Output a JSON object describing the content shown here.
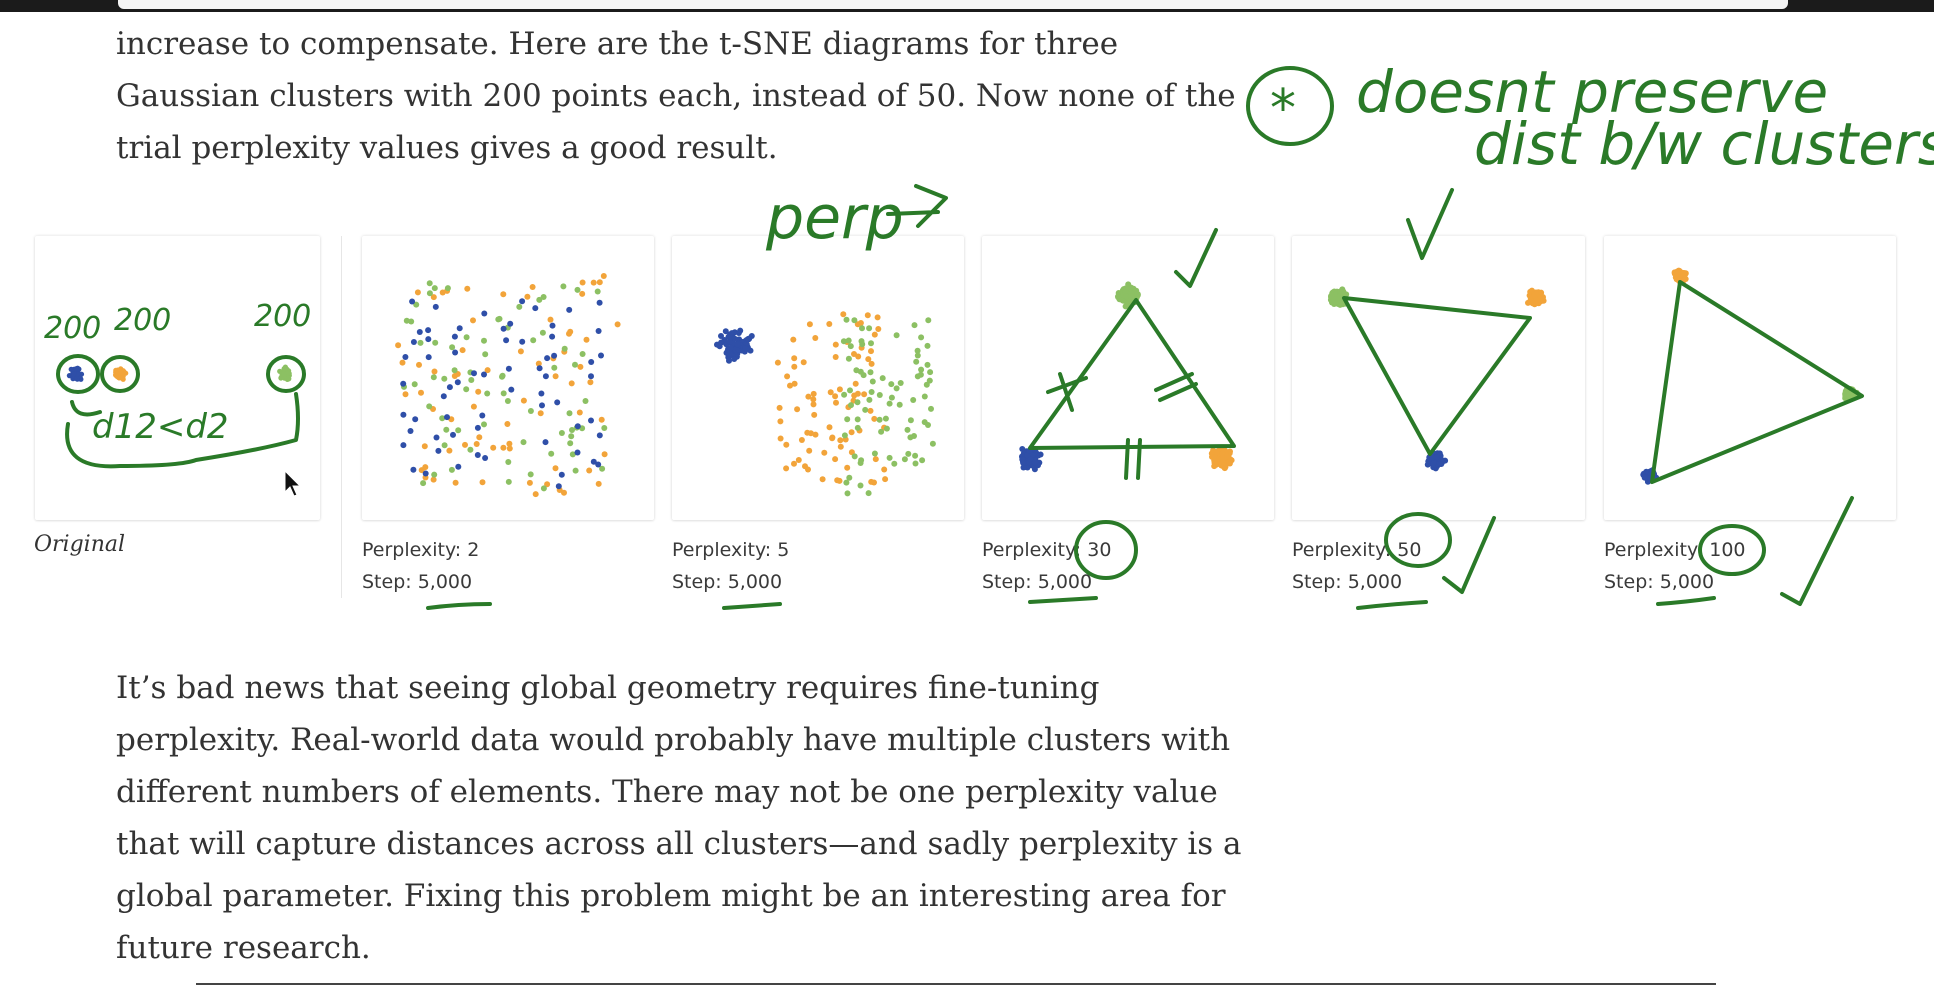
{
  "article": {
    "paragraph_before": "increase to compensate. Here are the t-SNE diagrams for three Gaussian clusters with 200 points each, instead of 50. Now none of the trial perplexity values gives a good result.",
    "paragraph_after": "It’s bad news that seeing global geometry requires fine-tuning perplexity. Real-world data would probably have multiple clusters with different numbers of elements. There may not be one perplexity value that will capture distances across all clusters—and sadly perplexity is a global parameter. Fixing this problem might be an interesting area for future research."
  },
  "figure": {
    "original_label": "Original",
    "panels": [
      {
        "perplexity_label": "Perplexity: 2",
        "step_label": "Step: 5,000"
      },
      {
        "perplexity_label": "Perplexity: 5",
        "step_label": "Step: 5,000"
      },
      {
        "perplexity_label": "Perplexity: 30",
        "step_label": "Step: 5,000"
      },
      {
        "perplexity_label": "Perplexity: 50",
        "step_label": "Step: 5,000"
      },
      {
        "perplexity_label": "Perplexity: 100",
        "step_label": "Step: 5,000"
      }
    ],
    "colors": {
      "blue": "#2f4fa8",
      "orange": "#f2a43a",
      "green": "#8cc063"
    }
  },
  "annotations": {
    "note_line1": "doesnt preserve",
    "note_line2": "dist b/w clusters.",
    "star_symbol": "*",
    "perp_arrow": "perp",
    "cluster_sizes": [
      "200",
      "200",
      "200"
    ],
    "distance_note": "d12<d2",
    "ink_color": "#2a7a28"
  }
}
